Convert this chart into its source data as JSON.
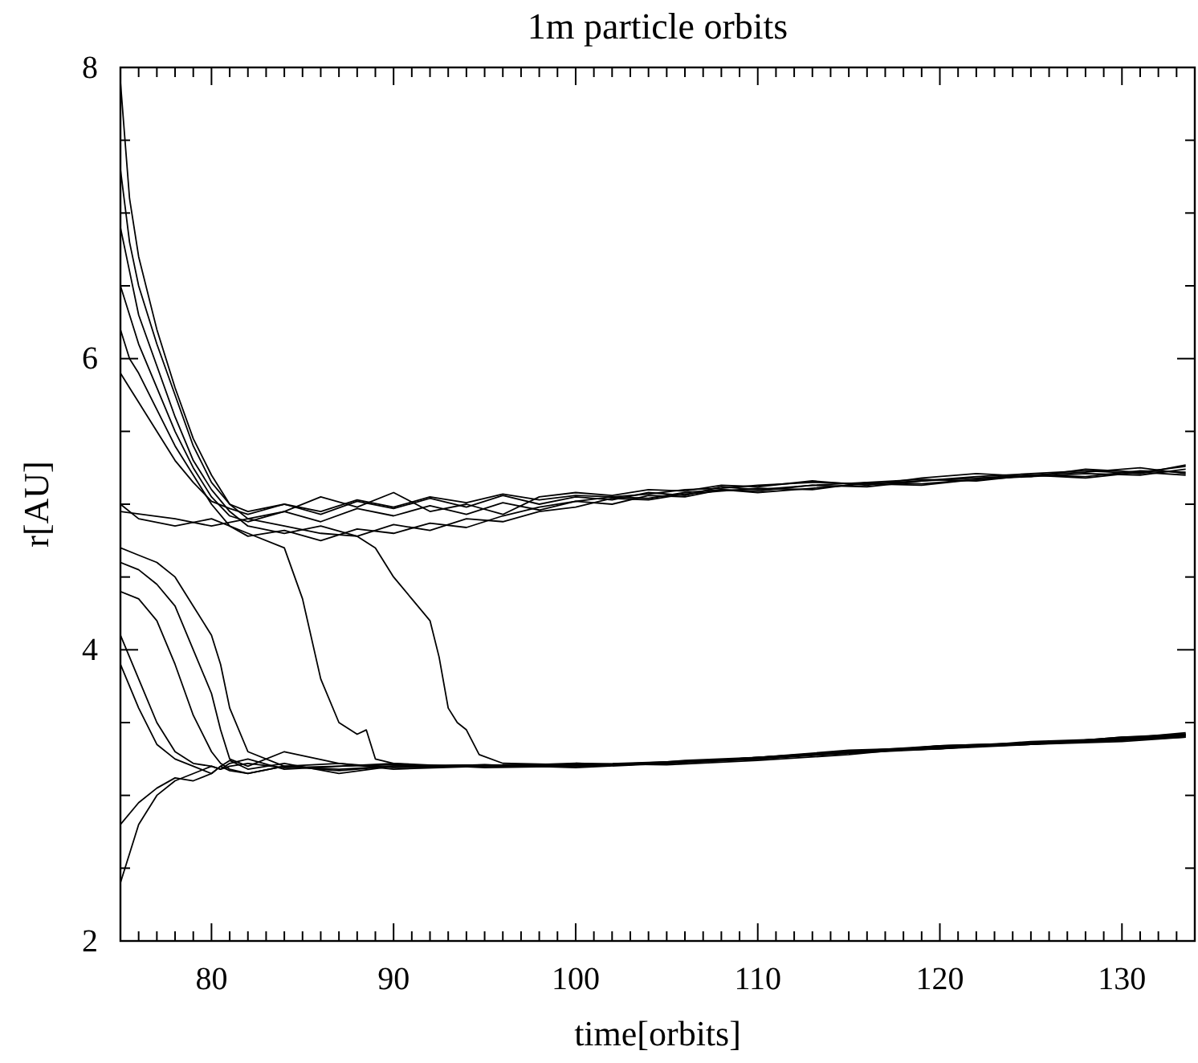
{
  "chart_data": {
    "type": "line",
    "title": "1m particle orbits",
    "xlabel": "time[orbits]",
    "ylabel": "r[AU]",
    "xlim": [
      75,
      134
    ],
    "ylim": [
      2,
      8
    ],
    "xticks": [
      {
        "value": 76,
        "label": null
      },
      {
        "value": 77,
        "label": null
      },
      {
        "value": 78,
        "label": null
      },
      {
        "value": 79,
        "label": null
      },
      80,
      {
        "value": 81,
        "label": null
      },
      {
        "value": 82,
        "label": null
      },
      {
        "value": 83,
        "label": null
      },
      {
        "value": 84,
        "label": null
      },
      {
        "value": 85,
        "label": null
      },
      {
        "value": 86,
        "label": null
      },
      {
        "value": 87,
        "label": null
      },
      {
        "value": 88,
        "label": null
      },
      {
        "value": 89,
        "label": null
      },
      90,
      {
        "value": 91,
        "label": null
      },
      {
        "value": 92,
        "label": null
      },
      {
        "value": 93,
        "label": null
      },
      {
        "value": 94,
        "label": null
      },
      {
        "value": 95,
        "label": null
      },
      {
        "value": 96,
        "label": null
      },
      {
        "value": 97,
        "label": null
      },
      {
        "value": 98,
        "label": null
      },
      {
        "value": 99,
        "label": null
      },
      100,
      {
        "value": 101,
        "label": null
      },
      {
        "value": 102,
        "label": null
      },
      {
        "value": 103,
        "label": null
      },
      {
        "value": 104,
        "label": null
      },
      {
        "value": 105,
        "label": null
      },
      {
        "value": 106,
        "label": null
      },
      {
        "value": 107,
        "label": null
      },
      {
        "value": 108,
        "label": null
      },
      {
        "value": 109,
        "label": null
      },
      110,
      {
        "value": 111,
        "label": null
      },
      {
        "value": 112,
        "label": null
      },
      {
        "value": 113,
        "label": null
      },
      {
        "value": 114,
        "label": null
      },
      {
        "value": 115,
        "label": null
      },
      {
        "value": 116,
        "label": null
      },
      {
        "value": 117,
        "label": null
      },
      {
        "value": 118,
        "label": null
      },
      {
        "value": 119,
        "label": null
      },
      120,
      {
        "value": 121,
        "label": null
      },
      {
        "value": 122,
        "label": null
      },
      {
        "value": 123,
        "label": null
      },
      {
        "value": 124,
        "label": null
      },
      {
        "value": 125,
        "label": null
      },
      {
        "value": 126,
        "label": null
      },
      {
        "value": 127,
        "label": null
      },
      {
        "value": 128,
        "label": null
      },
      {
        "value": 129,
        "label": null
      },
      130,
      {
        "value": 131,
        "label": null
      },
      {
        "value": 132,
        "label": null
      },
      {
        "value": 133,
        "label": null
      }
    ],
    "yticks": [
      2,
      {
        "value": 2.5,
        "label": null
      },
      {
        "value": 3,
        "label": null
      },
      {
        "value": 3.5,
        "label": null
      },
      4,
      {
        "value": 4.5,
        "label": null
      },
      {
        "value": 5,
        "label": null
      },
      {
        "value": 5.5,
        "label": null
      },
      6,
      {
        "value": 6.5,
        "label": null
      },
      {
        "value": 7,
        "label": null
      },
      {
        "value": 7.5,
        "label": null
      },
      8
    ],
    "series": [
      {
        "color": "#000000",
        "x": [
          75,
          75.5,
          76,
          77,
          78,
          79,
          80,
          81,
          82,
          84,
          86,
          88,
          90,
          92,
          94,
          96,
          98,
          100,
          102,
          104,
          106,
          108,
          110,
          113,
          116,
          119,
          122,
          125,
          128,
          131,
          133.5
        ],
        "values": [
          7.9,
          7.1,
          6.7,
          6.2,
          5.8,
          5.45,
          5.2,
          5.0,
          4.95,
          5.0,
          4.93,
          5.02,
          4.97,
          5.04,
          4.98,
          5.06,
          5.0,
          5.05,
          5.03,
          5.08,
          5.06,
          5.12,
          5.1,
          5.13,
          5.12,
          5.16,
          5.18,
          5.2,
          5.19,
          5.23,
          5.22
        ]
      },
      {
        "color": "#000000",
        "x": [
          75,
          75.5,
          76,
          77,
          78,
          79,
          80,
          81,
          82,
          84,
          86,
          88,
          90,
          92,
          94,
          96,
          98,
          100,
          102,
          104,
          106,
          108,
          110,
          113,
          116,
          119,
          122,
          125,
          128,
          131,
          133.5
        ],
        "values": [
          7.3,
          6.8,
          6.5,
          6.1,
          5.75,
          5.4,
          5.15,
          5.0,
          4.9,
          4.95,
          4.88,
          4.97,
          4.92,
          4.99,
          4.93,
          5.01,
          4.96,
          5.02,
          5.0,
          5.06,
          5.05,
          5.1,
          5.08,
          5.11,
          5.14,
          5.13,
          5.17,
          5.19,
          5.21,
          5.2,
          5.24
        ]
      },
      {
        "color": "#000000",
        "x": [
          75,
          75.5,
          76,
          77,
          78,
          79,
          80,
          81,
          82,
          84,
          86,
          88,
          90,
          92,
          94,
          96,
          98,
          100,
          102,
          104,
          106,
          108,
          110,
          113,
          116,
          119,
          122,
          125,
          128,
          131,
          133.5
        ],
        "values": [
          6.9,
          6.6,
          6.3,
          5.95,
          5.6,
          5.3,
          5.1,
          4.95,
          4.85,
          4.8,
          4.85,
          4.78,
          4.86,
          4.82,
          4.9,
          4.88,
          4.95,
          4.98,
          5.04,
          5.03,
          5.07,
          5.09,
          5.11,
          5.1,
          5.15,
          5.17,
          5.16,
          5.2,
          5.22,
          5.25,
          5.21
        ]
      },
      {
        "color": "#000000",
        "x": [
          75,
          75.5,
          76,
          77,
          78,
          79,
          80,
          81,
          82,
          84,
          86,
          88,
          90,
          92,
          94,
          96,
          98,
          100,
          102,
          104,
          106,
          108,
          110,
          113,
          116,
          119,
          122,
          125,
          128,
          131,
          133.5
        ],
        "values": [
          6.5,
          6.3,
          6.1,
          5.8,
          5.5,
          5.25,
          5.05,
          4.92,
          4.88,
          4.95,
          5.05,
          4.98,
          5.08,
          4.95,
          5.0,
          4.93,
          5.05,
          5.08,
          5.06,
          5.1,
          5.09,
          5.13,
          5.12,
          5.16,
          5.13,
          5.18,
          5.21,
          5.19,
          5.24,
          5.22,
          5.26
        ]
      },
      {
        "color": "#000000",
        "x": [
          75,
          75.5,
          76,
          77,
          78,
          79,
          80,
          81,
          82,
          84,
          86,
          88,
          90,
          92,
          94,
          96,
          98,
          100,
          102,
          104,
          106,
          108,
          110,
          113,
          116,
          119,
          122,
          125,
          128,
          131,
          133.5
        ],
        "values": [
          6.2,
          6.0,
          5.9,
          5.65,
          5.4,
          5.2,
          5.0,
          4.85,
          4.78,
          4.82,
          4.75,
          4.83,
          4.8,
          4.87,
          4.84,
          4.92,
          4.98,
          5.02,
          5.05,
          5.04,
          5.08,
          5.1,
          5.09,
          5.13,
          5.15,
          5.14,
          5.17,
          5.2,
          5.18,
          5.22,
          5.2
        ]
      },
      {
        "color": "#000000",
        "x": [
          75,
          75.5,
          76,
          77,
          78,
          79,
          80,
          81,
          82,
          84,
          86,
          88,
          90,
          92,
          94,
          96,
          98,
          100,
          102,
          104,
          106,
          108,
          110,
          113,
          116,
          119,
          122,
          125,
          128,
          131,
          133.5
        ],
        "values": [
          5.9,
          5.8,
          5.7,
          5.5,
          5.3,
          5.15,
          5.02,
          4.97,
          4.93,
          5.0,
          4.95,
          5.03,
          4.98,
          5.05,
          5.01,
          5.07,
          5.03,
          5.06,
          5.05,
          5.07,
          5.1,
          5.11,
          5.13,
          5.15,
          5.14,
          5.16,
          5.19,
          5.21,
          5.23,
          5.21,
          5.27
        ]
      },
      {
        "color": "#000000",
        "x": [
          75,
          76,
          78,
          80,
          82,
          84,
          85,
          86,
          87,
          88,
          88.5,
          89,
          90,
          92,
          95,
          98,
          100,
          103,
          106,
          110,
          115,
          120,
          125,
          130,
          133.5
        ],
        "values": [
          5.0,
          4.9,
          4.85,
          4.9,
          4.8,
          4.7,
          4.35,
          3.8,
          3.5,
          3.42,
          3.45,
          3.25,
          3.22,
          3.2,
          3.21,
          3.2,
          3.22,
          3.21,
          3.24,
          3.26,
          3.3,
          3.33,
          3.35,
          3.38,
          3.4
        ]
      },
      {
        "color": "#000000",
        "x": [
          75,
          78,
          80,
          82,
          84,
          86,
          88,
          89,
          90,
          91,
          92,
          92.5,
          93,
          93.5,
          94,
          94.7,
          96,
          100,
          105,
          110,
          115,
          120,
          125,
          130,
          133.5
        ],
        "values": [
          4.95,
          4.9,
          4.85,
          4.9,
          4.85,
          4.8,
          4.78,
          4.7,
          4.5,
          4.35,
          4.2,
          3.95,
          3.6,
          3.5,
          3.45,
          3.28,
          3.22,
          3.21,
          3.23,
          3.25,
          3.3,
          3.32,
          3.36,
          3.38,
          3.41
        ]
      },
      {
        "color": "#000000",
        "x": [
          75,
          76,
          77,
          78,
          79,
          80,
          80.5,
          81,
          82,
          84,
          87,
          90,
          95,
          100,
          105,
          110,
          115,
          120,
          125,
          130,
          133.5
        ],
        "values": [
          4.6,
          4.55,
          4.45,
          4.3,
          4.0,
          3.7,
          3.45,
          3.25,
          3.2,
          3.3,
          3.22,
          3.18,
          3.2,
          3.21,
          3.22,
          3.26,
          3.3,
          3.33,
          3.36,
          3.38,
          3.42
        ]
      },
      {
        "color": "#000000",
        "x": [
          75,
          76,
          77,
          78,
          79,
          80,
          80.5,
          81,
          82,
          84,
          87,
          90,
          95,
          100,
          105,
          110,
          115,
          120,
          125,
          130,
          133.5
        ],
        "values": [
          4.4,
          4.35,
          4.2,
          3.9,
          3.55,
          3.3,
          3.22,
          3.18,
          3.15,
          3.2,
          3.17,
          3.2,
          3.21,
          3.2,
          3.23,
          3.25,
          3.29,
          3.32,
          3.35,
          3.37,
          3.4
        ]
      },
      {
        "color": "#000000",
        "x": [
          75,
          76,
          77,
          78,
          79,
          80,
          80.5,
          81,
          82,
          84,
          87,
          90,
          95,
          100,
          105,
          110,
          115,
          120,
          125,
          130,
          133.5
        ],
        "values": [
          4.1,
          3.8,
          3.5,
          3.3,
          3.22,
          3.2,
          3.18,
          3.22,
          3.25,
          3.18,
          3.2,
          3.22,
          3.19,
          3.2,
          3.22,
          3.25,
          3.3,
          3.34,
          3.36,
          3.39,
          3.43
        ]
      },
      {
        "color": "#000000",
        "x": [
          75,
          76,
          77,
          78,
          79,
          80,
          80.5,
          81,
          82,
          84,
          87,
          90,
          95,
          100,
          105,
          110,
          115,
          120,
          125,
          130,
          133.5
        ],
        "values": [
          3.9,
          3.6,
          3.35,
          3.25,
          3.2,
          3.15,
          3.2,
          3.24,
          3.18,
          3.22,
          3.15,
          3.2,
          3.2,
          3.21,
          3.22,
          3.26,
          3.31,
          3.33,
          3.35,
          3.4,
          3.41
        ]
      },
      {
        "color": "#000000",
        "x": [
          75,
          76,
          77,
          78,
          79,
          80,
          80.5,
          81,
          82,
          84,
          87,
          90,
          95,
          100,
          105,
          110,
          115,
          120,
          125,
          130,
          133.5
        ],
        "values": [
          4.7,
          4.65,
          4.6,
          4.5,
          4.3,
          4.1,
          3.9,
          3.6,
          3.3,
          3.2,
          3.22,
          3.19,
          3.2,
          3.22,
          3.21,
          3.24,
          3.28,
          3.34,
          3.36,
          3.38,
          3.42
        ]
      },
      {
        "color": "#000000",
        "x": [
          75,
          76,
          77,
          78,
          79,
          80,
          80.5,
          81,
          82,
          84,
          87,
          90,
          95,
          100,
          105,
          110,
          115,
          120,
          125,
          130,
          133.5
        ],
        "values": [
          2.4,
          2.8,
          3.0,
          3.1,
          3.15,
          3.2,
          3.18,
          3.2,
          3.22,
          3.19,
          3.2,
          3.21,
          3.2,
          3.2,
          3.22,
          3.25,
          3.3,
          3.32,
          3.37,
          3.39,
          3.41
        ]
      },
      {
        "color": "#000000",
        "x": [
          75,
          76,
          77,
          78,
          79,
          80,
          80.5,
          81,
          82,
          84,
          87,
          90,
          95,
          100,
          105,
          110,
          115,
          120,
          125,
          130,
          133.5
        ],
        "values": [
          2.8,
          2.95,
          3.05,
          3.12,
          3.1,
          3.15,
          3.2,
          3.17,
          3.15,
          3.2,
          3.18,
          3.2,
          3.21,
          3.19,
          3.22,
          3.26,
          3.29,
          3.34,
          3.35,
          3.4,
          3.42
        ]
      }
    ]
  }
}
